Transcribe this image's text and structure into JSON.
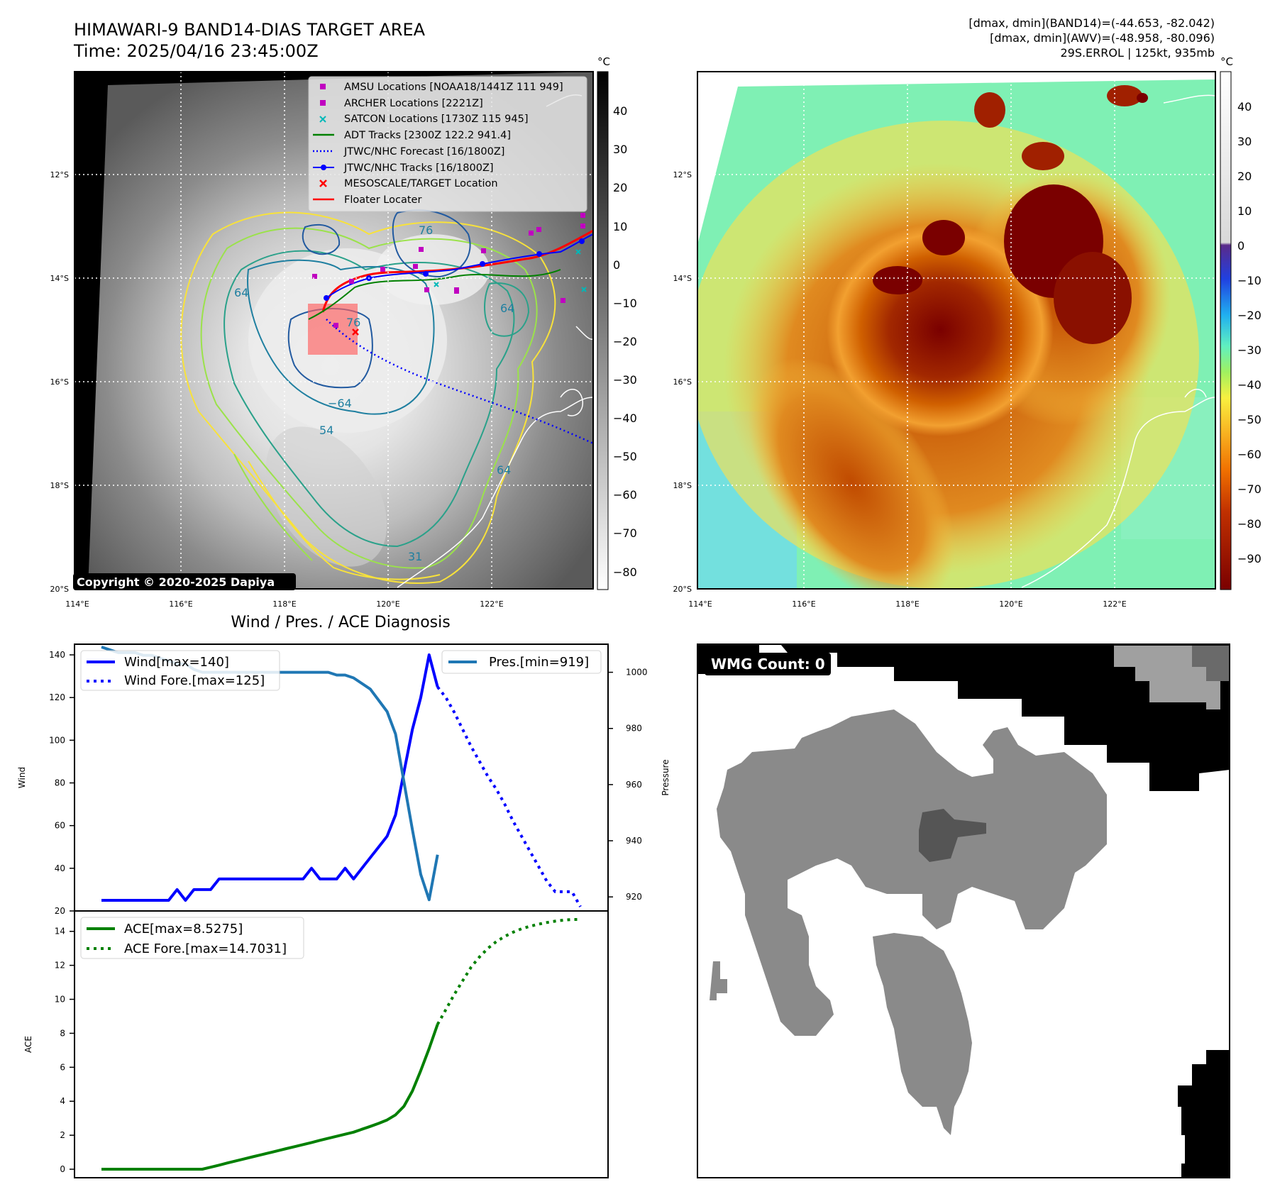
{
  "header": {
    "title_line1": "HIMAWARI-9 BAND14-DIAS TARGET AREA",
    "title_line2": "Time: 2025/04/16 23:45:00Z",
    "stats_line1": "[dmax, dmin](BAND14)=(-44.653, -82.042)",
    "stats_line2": "[dmax, dmin](AWV)=(-48.958, -80.096)",
    "stats_line3": "29S.ERROL | 125kt, 935mb"
  },
  "map": {
    "lat_ticks": [
      "12°S",
      "14°S",
      "16°S",
      "18°S",
      "20°S"
    ],
    "lon_ticks": [
      "114°E",
      "116°E",
      "118°E",
      "120°E",
      "122°E"
    ],
    "copyright": "Copyright © 2020-2025 Dapiya",
    "contour_labels": [
      "64",
      "76",
      "64",
      "−64",
      "54",
      "76",
      "64",
      "31"
    ],
    "legend": [
      {
        "label": "AMSU Locations [NOAA18/1441Z 111 949]",
        "marker": "square",
        "color": "#c000c0"
      },
      {
        "label": "ARCHER Locations [2221Z]",
        "marker": "square",
        "color": "#c000c0"
      },
      {
        "label": "SATCON Locations [1730Z 115 945]",
        "marker": "x",
        "color": "#00b8b8"
      },
      {
        "label": "ADT Tracks [2300Z 122.2 941.4]",
        "marker": "line",
        "color": "#008000"
      },
      {
        "label": "JTWC/NHC Forecast [16/1800Z]",
        "marker": "dotted",
        "color": "#0000ff"
      },
      {
        "label": "JTWC/NHC Tracks [16/1800Z]",
        "marker": "dotline",
        "color": "#0000ff"
      },
      {
        "label": "MESOSCALE/TARGET Location",
        "marker": "x",
        "color": "#ff0000"
      },
      {
        "label": "Floater Locater",
        "marker": "line",
        "color": "#ff0000"
      }
    ]
  },
  "colorbars": {
    "unit": "°C",
    "gray_ticks": [
      "40",
      "30",
      "20",
      "10",
      "0",
      "−10",
      "−20",
      "−30",
      "−40",
      "−50",
      "−60",
      "−70",
      "−80"
    ],
    "color_ticks": [
      "40",
      "30",
      "20",
      "10",
      "0",
      "−10",
      "−20",
      "−30",
      "−40",
      "−50",
      "−60",
      "−70",
      "−80",
      "−90"
    ]
  },
  "wmg": {
    "label": "WMG Count: 0"
  },
  "chart_data": [
    {
      "type": "line",
      "title": "Wind / Pres. / ACE Diagnosis",
      "ylabel": "Wind",
      "ylabel_right": "Pressure",
      "ylim": [
        20,
        145
      ],
      "ylim_right": [
        915,
        1010
      ],
      "yticks": [
        20,
        40,
        60,
        80,
        100,
        120,
        140
      ],
      "yticks_right": [
        920,
        940,
        960,
        980,
        1000
      ],
      "x_count": 58,
      "series": [
        {
          "name": "Wind[max=140]",
          "style": "solid",
          "color": "#0000ff",
          "x": [
            0,
            1,
            2,
            3,
            4,
            5,
            6,
            7,
            8,
            9,
            10,
            11,
            12,
            13,
            14,
            15,
            16,
            17,
            18,
            19,
            20,
            21,
            22,
            23,
            24,
            25,
            26,
            27,
            28,
            29,
            30,
            31,
            32,
            33,
            34,
            35,
            36,
            37,
            38,
            39,
            40
          ],
          "values": [
            25,
            25,
            25,
            25,
            25,
            25,
            25,
            25,
            25,
            30,
            25,
            30,
            30,
            30,
            35,
            35,
            35,
            35,
            35,
            35,
            35,
            35,
            35,
            35,
            35,
            40,
            35,
            35,
            35,
            40,
            35,
            40,
            45,
            50,
            55,
            65,
            85,
            105,
            120,
            140,
            125
          ]
        },
        {
          "name": "Wind Fore.[max=125]",
          "style": "dotted",
          "color": "#0000ff",
          "x": [
            40,
            41,
            42,
            43,
            44,
            45,
            46,
            47,
            48,
            49,
            50,
            51,
            52,
            53,
            54,
            55,
            56,
            57
          ],
          "values": [
            125,
            120,
            113,
            105,
            97,
            90,
            83,
            77,
            70,
            62,
            55,
            48,
            41,
            34,
            29,
            29,
            29,
            22
          ]
        },
        {
          "name": "Pres.[min=919]",
          "style": "solid",
          "color": "#1f77b4",
          "axis": "right",
          "x": [
            0,
            1,
            2,
            3,
            4,
            5,
            6,
            7,
            8,
            9,
            10,
            11,
            12,
            13,
            14,
            15,
            16,
            17,
            18,
            19,
            20,
            21,
            22,
            23,
            24,
            25,
            26,
            27,
            28,
            29,
            30,
            31,
            32,
            33,
            34,
            35,
            36,
            37,
            38,
            39,
            40
          ],
          "values": [
            1009,
            1008,
            1007,
            1007,
            1007,
            1006,
            1006,
            1005,
            1004,
            1003,
            1003,
            1001,
            1000,
            1000,
            1000,
            1000,
            1000,
            1000,
            1000,
            1000,
            1000,
            1000,
            1000,
            1000,
            1000,
            1000,
            1000,
            1000,
            999,
            999,
            998,
            996,
            994,
            990,
            986,
            978,
            961,
            944,
            928,
            919,
            935
          ]
        }
      ]
    },
    {
      "type": "line",
      "ylabel": "ACE",
      "ylim": [
        -0.5,
        15.2
      ],
      "yticks": [
        0,
        2,
        4,
        6,
        8,
        10,
        12,
        14
      ],
      "x_count": 58,
      "series": [
        {
          "name": "ACE[max=8.5275]",
          "style": "solid",
          "color": "#008000",
          "x": [
            0,
            1,
            2,
            3,
            4,
            5,
            6,
            7,
            8,
            9,
            10,
            11,
            12,
            13,
            14,
            15,
            16,
            17,
            18,
            19,
            20,
            21,
            22,
            23,
            24,
            25,
            26,
            27,
            28,
            29,
            30,
            31,
            32,
            33,
            34,
            35,
            36,
            37,
            38,
            39,
            40
          ],
          "values": [
            0,
            0,
            0,
            0,
            0,
            0,
            0,
            0,
            0,
            0,
            0,
            0,
            0,
            0.12,
            0.24,
            0.37,
            0.49,
            0.61,
            0.73,
            0.85,
            0.97,
            1.09,
            1.21,
            1.33,
            1.45,
            1.57,
            1.7,
            1.82,
            1.94,
            2.06,
            2.18,
            2.35,
            2.52,
            2.7,
            2.9,
            3.2,
            3.7,
            4.6,
            5.8,
            7.1,
            8.5275
          ]
        },
        {
          "name": "ACE Fore.[max=14.7031]",
          "style": "dotted",
          "color": "#008000",
          "x": [
            40,
            41,
            42,
            43,
            44,
            45,
            46,
            47,
            48,
            49,
            50,
            51,
            52,
            53,
            54,
            55,
            56,
            57
          ],
          "values": [
            8.5275,
            9.4,
            10.3,
            11.1,
            11.9,
            12.5,
            13.0,
            13.4,
            13.7,
            13.95,
            14.15,
            14.3,
            14.42,
            14.52,
            14.6,
            14.66,
            14.7,
            14.7031
          ]
        }
      ]
    }
  ]
}
